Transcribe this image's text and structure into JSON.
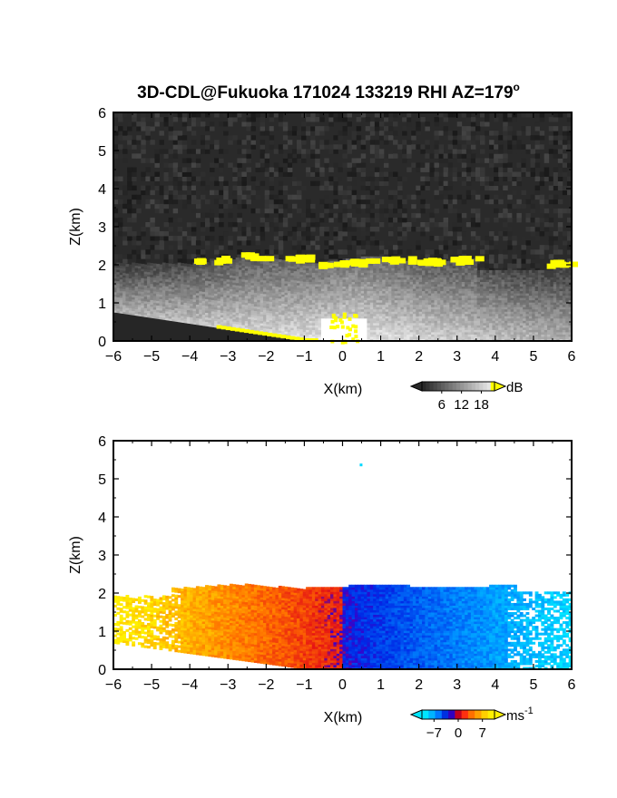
{
  "title": "3D-CDL@Fukuoka 171024 133219 RHI AZ=179",
  "title_superscript": "o",
  "chart_data": [
    {
      "type": "heatmap",
      "name": "backscatter-panel",
      "quantity": "backscatter intensity",
      "xlabel": "X(km)",
      "ylabel": "Z(km)",
      "xlim": [
        -6,
        6
      ],
      "ylim": [
        0,
        6
      ],
      "xticks": [
        -6,
        -5,
        -4,
        -3,
        -2,
        -1,
        0,
        1,
        2,
        3,
        4,
        5,
        6
      ],
      "yticks": [
        0,
        1,
        2,
        3,
        4,
        5,
        6
      ],
      "colormap": "grayscale with yellow saturation",
      "colorbar": {
        "unit": "dB",
        "ticks": [
          6,
          12,
          18
        ]
      },
      "background_color": "#2a2a2a",
      "cloud_base_color": "#ffff00",
      "cloud_base_height_km": [
        {
          "x": -3.5,
          "z": 2.1
        },
        {
          "x": -2.3,
          "z": 2.2
        },
        {
          "x": -1.3,
          "z": 2.15
        },
        {
          "x": -0.4,
          "z": 2.0
        },
        {
          "x": 0.5,
          "z": 2.05
        },
        {
          "x": 1.4,
          "z": 2.1
        },
        {
          "x": 2.3,
          "z": 2.05
        },
        {
          "x": 3.2,
          "z": 2.1
        },
        {
          "x": 5.7,
          "z": 2.0
        }
      ]
    },
    {
      "type": "heatmap",
      "name": "doppler-velocity-panel",
      "quantity": "Doppler velocity",
      "xlabel": "X(km)",
      "ylabel": "Z(km)",
      "xlim": [
        -6,
        6
      ],
      "ylim": [
        0,
        6
      ],
      "xticks": [
        -6,
        -5,
        -4,
        -3,
        -2,
        -1,
        0,
        1,
        2,
        3,
        4,
        5,
        6
      ],
      "yticks": [
        0,
        1,
        2,
        3,
        4,
        5,
        6
      ],
      "colormap": "cyan-blue-red-yellow diverging",
      "colorbar": {
        "unit": "ms",
        "unit_superscript": "-1",
        "ticks": [
          -7,
          0,
          7
        ]
      },
      "top_height_km": 2.1,
      "negative_side": "x > 0 (blue/cyan)",
      "positive_side": "x < 0 (red/orange/yellow)"
    }
  ]
}
